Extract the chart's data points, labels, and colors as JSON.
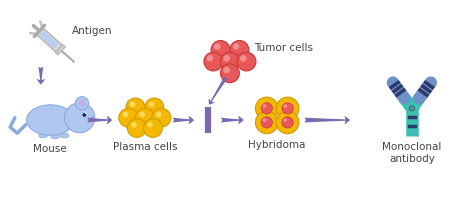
{
  "bg_color": "#ffffff",
  "purple": "#7b68b0",
  "mouse_color": "#b0c8f0",
  "mouse_outline": "#8aaade",
  "plasma_color": "#f5b800",
  "plasma_edge": "#d49a00",
  "tumor_color": "#e85858",
  "tumor_edge": "#c83838",
  "tumor_highlight": "#f09090",
  "hybridoma_outer": "#f5b800",
  "hybridoma_outer_edge": "#d49a00",
  "hybridoma_inner": "#e85858",
  "hybridoma_inner_edge": "#c83838",
  "hybridoma_highlight": "#f09090",
  "teal": "#3bbfb0",
  "teal_dark": "#2a9a90",
  "ab_blue": "#7090c8",
  "ab_stripe_dark": "#2a3a6a",
  "ab_stripe_light": "#ffffff",
  "label_color": "#444444",
  "antigen_label": "Antigen",
  "mouse_label": "Mouse",
  "plasma_label": "Plasma cells",
  "tumor_label": "Tumor cells",
  "hybridoma_label": "Hybridoma",
  "antibody_label": "Monoclonal\nantibody",
  "label_fontsize": 7.5,
  "xlim": [
    0,
    10
  ],
  "ylim": [
    0,
    4.2
  ]
}
